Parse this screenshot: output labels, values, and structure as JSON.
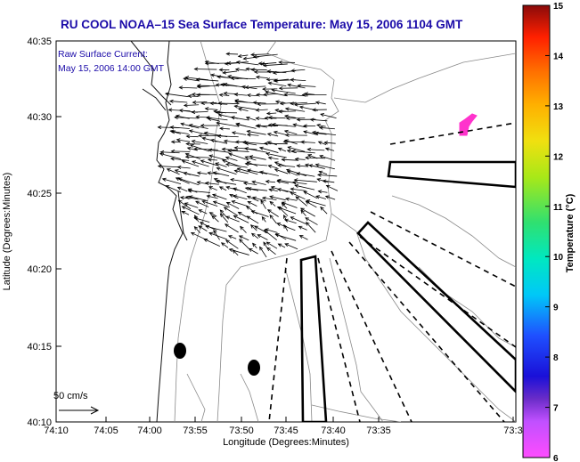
{
  "title": "RU COOL  NOAA–15  Sea Surface Temperature:  May 15, 2006 1104 GMT",
  "annotation": {
    "line1": "Raw Surface Current:",
    "line2": "May 15, 2006 14:00 GMT"
  },
  "scale_label": "50 cm/s",
  "axes": {
    "xlabel": "Longitude (Degrees:Minutes)",
    "ylabel": "Latitude (Degrees:Minutes)",
    "x_ticks": [
      "74:10",
      "74:05",
      "74:00",
      "73:55",
      "73:50",
      "73:45",
      "73:40",
      "73:35",
      "73:3"
    ],
    "y_ticks": [
      "40:35",
      "40:30",
      "40:25",
      "40:20",
      "40:15",
      "40:10"
    ]
  },
  "colorbar": {
    "label": "Temperature (°C)",
    "ticks": [
      "15",
      "14",
      "13",
      "12",
      "11",
      "10",
      "9",
      "8",
      "7",
      "6"
    ],
    "min": 6,
    "max": 15
  },
  "colors": {
    "title_blue": "#1a0aa8",
    "sst_patch": "#ff33cc"
  }
}
